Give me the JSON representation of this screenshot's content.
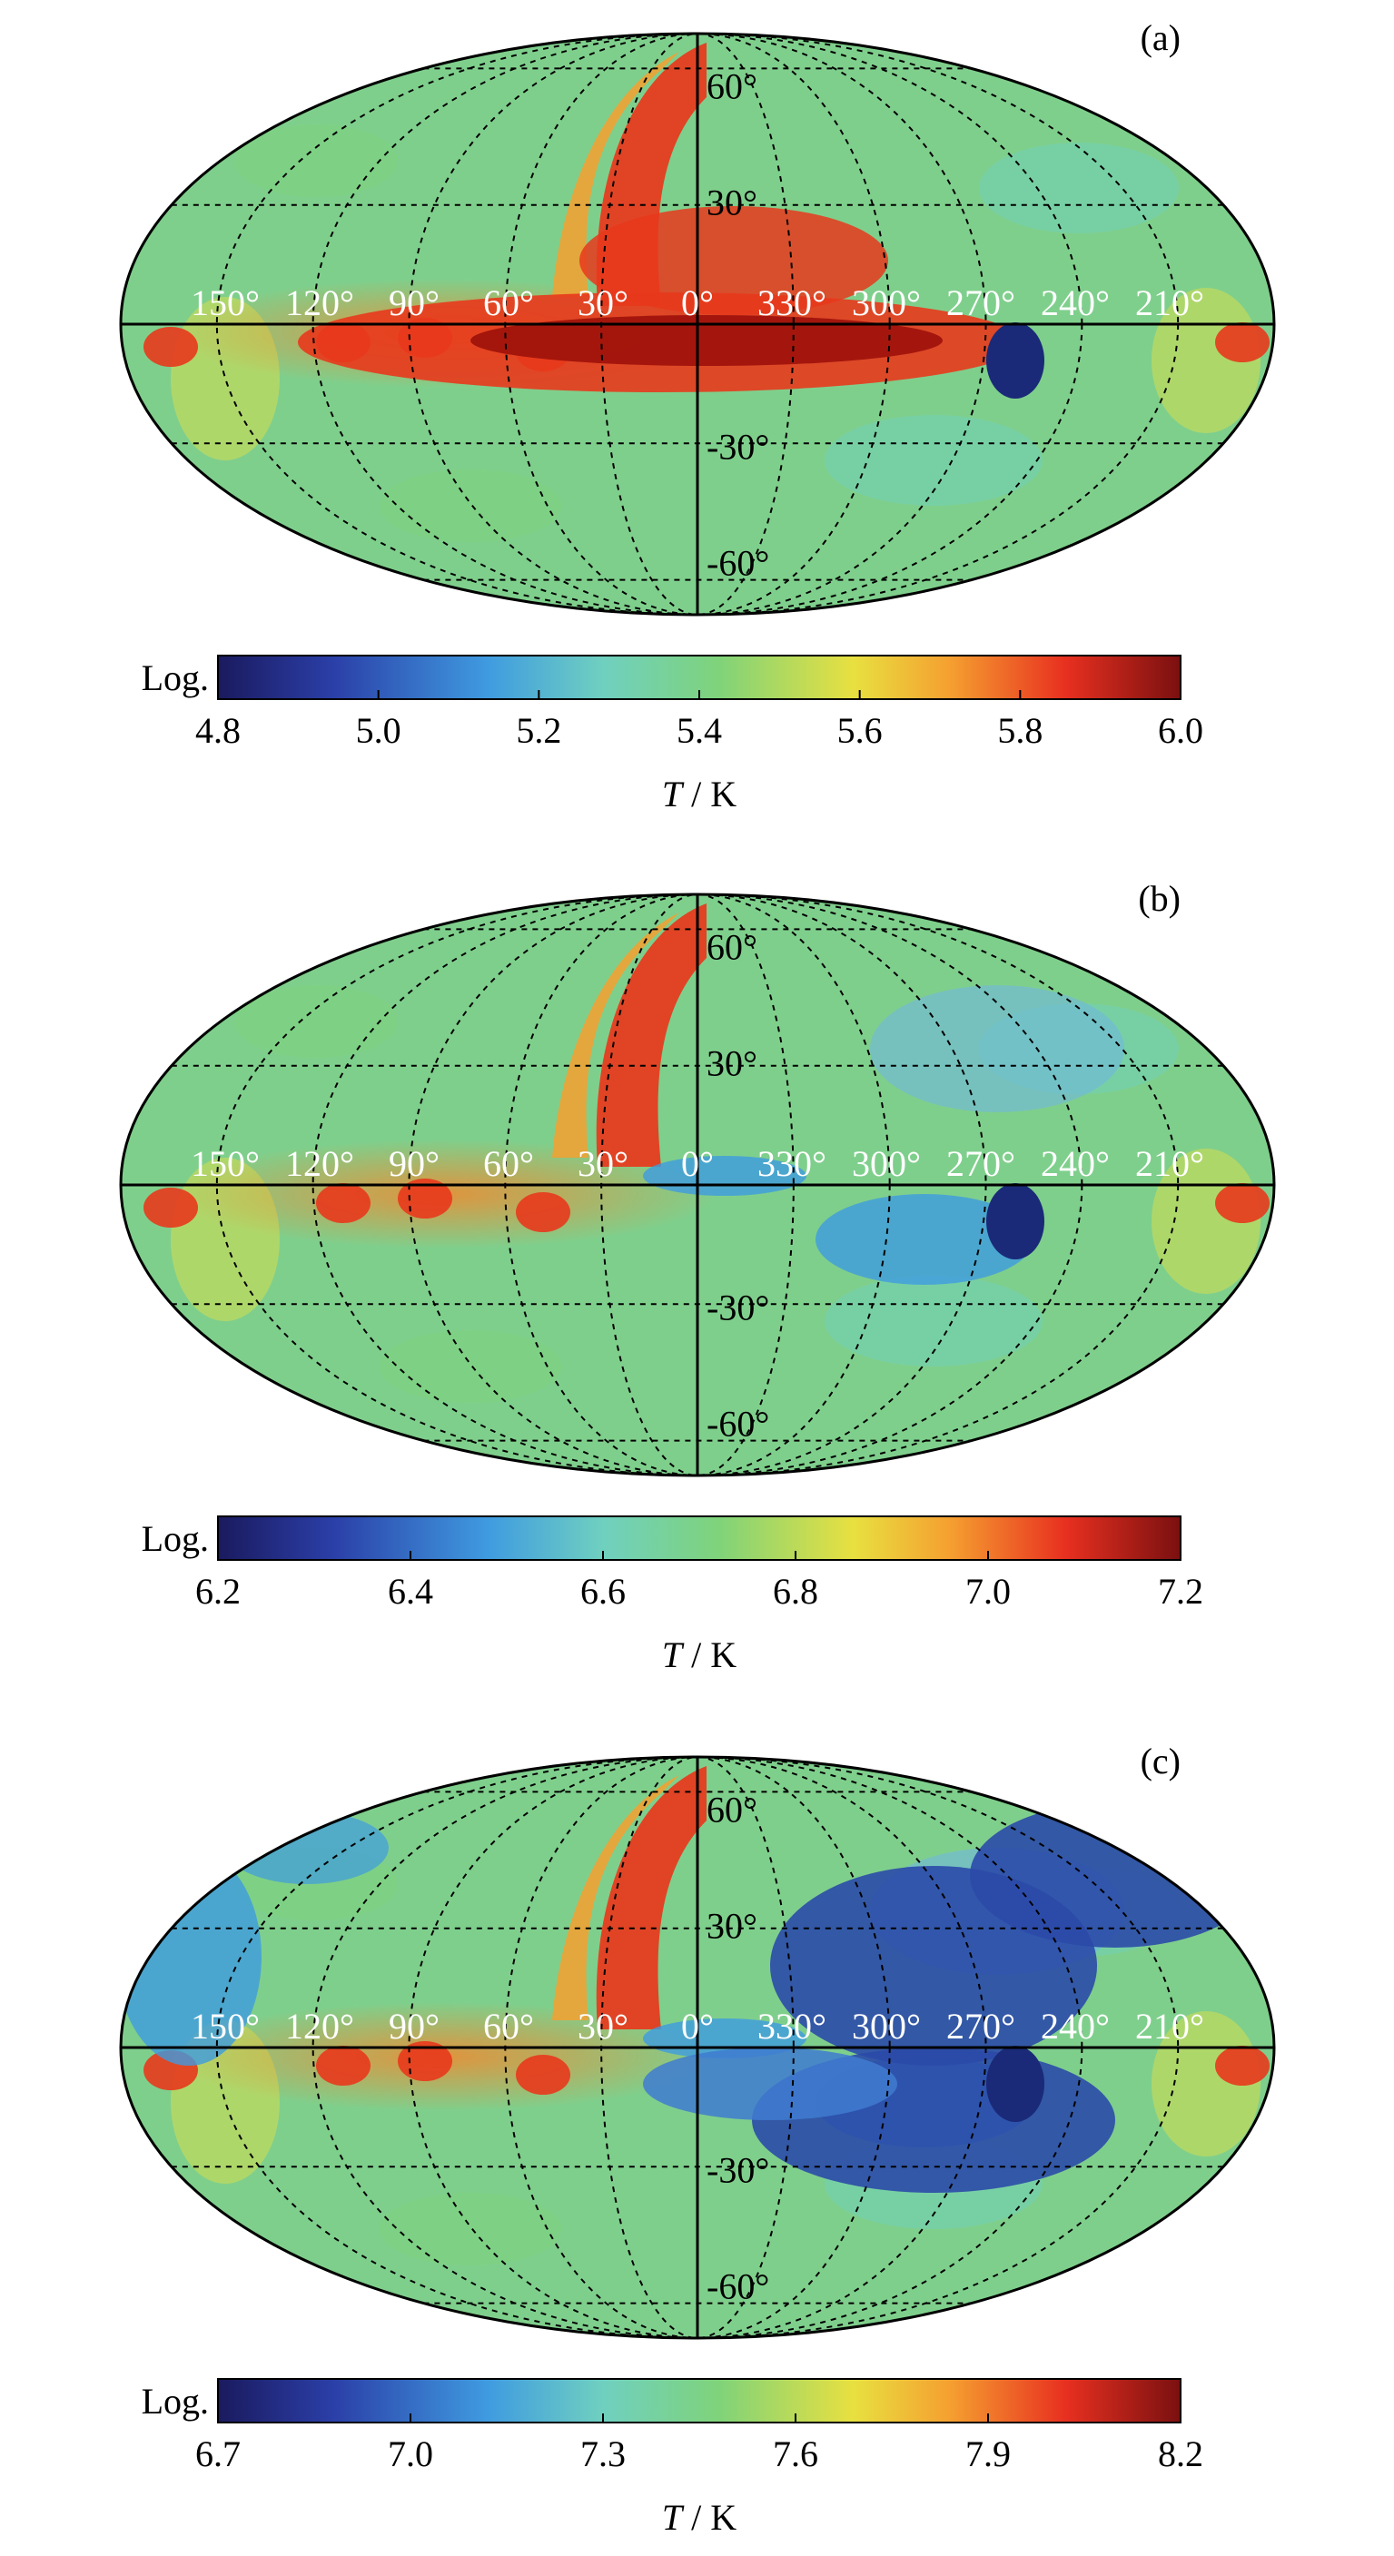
{
  "panels": [
    {
      "label": "(a)",
      "colorbar": {
        "prefix": "Log.",
        "ticks": [
          "4.8",
          "5.0",
          "5.2",
          "5.4",
          "5.6",
          "5.8",
          "6.0"
        ],
        "unit_var": "T",
        "unit": " / K"
      },
      "features": [
        "bubble",
        "plane"
      ]
    },
    {
      "label": "(b)",
      "colorbar": {
        "prefix": "Log.",
        "ticks": [
          "6.2",
          "6.4",
          "6.6",
          "6.8",
          "7.0",
          "7.2"
        ],
        "unit_var": "T",
        "unit": " / K"
      },
      "features": [
        "bubble",
        "cold-lobes"
      ]
    },
    {
      "label": "(c)",
      "colorbar": {
        "prefix": "Log.",
        "ticks": [
          "6.7",
          "7.0",
          "7.3",
          "7.6",
          "7.9",
          "8.2"
        ],
        "unit_var": "T",
        "unit": " / K"
      },
      "features": [
        "bubble",
        "cold-lobes",
        "cold-right"
      ]
    }
  ],
  "longitude_labels": [
    "150°",
    "120°",
    "90°",
    "60°",
    "30°",
    "0°",
    "330°",
    "300°",
    "270°",
    "240°",
    "210°"
  ],
  "latitude_labels": [
    "60°",
    "30°",
    "-30°",
    "-60°"
  ],
  "colormap": [
    "#1a1a5e",
    "#2b3fa8",
    "#3f9be0",
    "#6fd0c0",
    "#7fd37a",
    "#e8e040",
    "#f5a030",
    "#e83020",
    "#7a1010"
  ],
  "colors": {
    "background": "#7fcf8c",
    "hot": "#e8381c",
    "cold": "#2b4aa8",
    "plane": "#a0140c"
  }
}
